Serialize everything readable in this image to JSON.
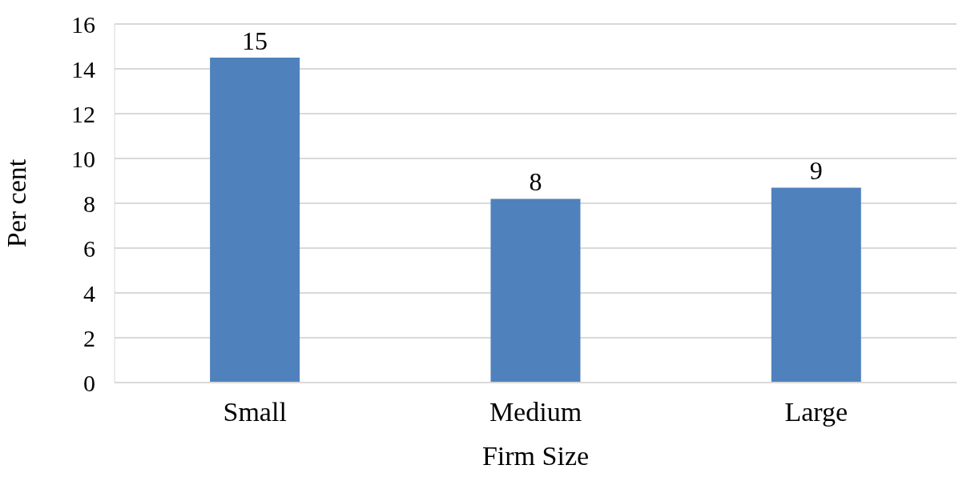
{
  "chart_data": {
    "type": "bar",
    "xlabel": "Firm Size",
    "ylabel": "Per cent",
    "categories": [
      "Small",
      "Medium",
      "Large"
    ],
    "values": [
      14.5,
      8.2,
      8.7
    ],
    "value_labels": [
      "15",
      "8",
      "9"
    ],
    "color": "#4f81bd",
    "ylim": [
      0,
      16
    ],
    "yticks": [
      0,
      2,
      4,
      6,
      8,
      10,
      12,
      14,
      16
    ],
    "grid": "y"
  }
}
